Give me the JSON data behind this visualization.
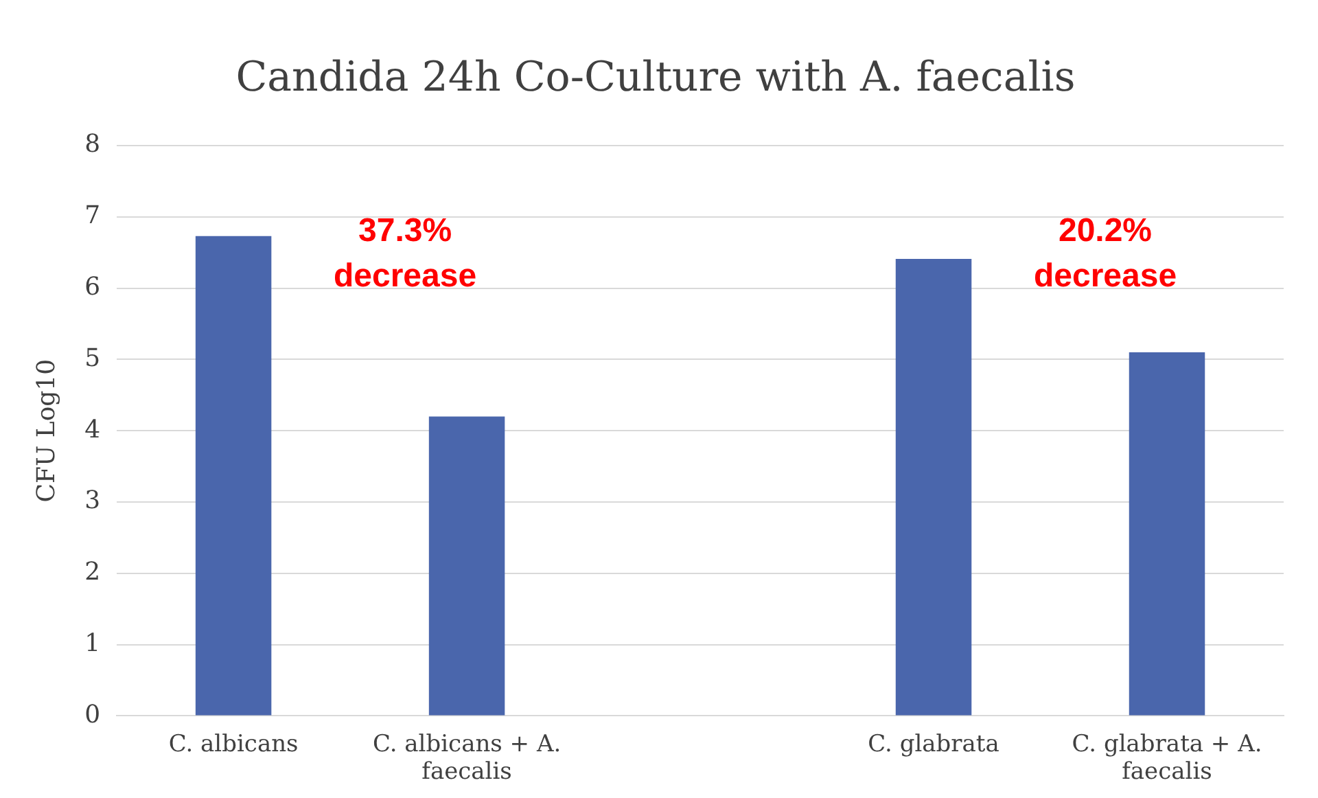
{
  "chart_data": {
    "type": "bar",
    "title": "Candida 24h Co-Culture with A. faecalis",
    "ylabel": "CFU Log10",
    "categories": [
      "C. albicans",
      "C. albicans + A. faecalis",
      null,
      "C. glabrata",
      "C. glabrata + A. faecalis"
    ],
    "values": [
      6.73,
      4.2,
      null,
      6.41,
      5.1
    ],
    "color": "#4a66ac",
    "ylim": [
      0,
      8
    ],
    "yticks": [
      0,
      1,
      2,
      3,
      4,
      5,
      6,
      7,
      8
    ],
    "grid": "y",
    "annotations": [
      "37.3% decrease",
      "20.2% decrease"
    ]
  }
}
